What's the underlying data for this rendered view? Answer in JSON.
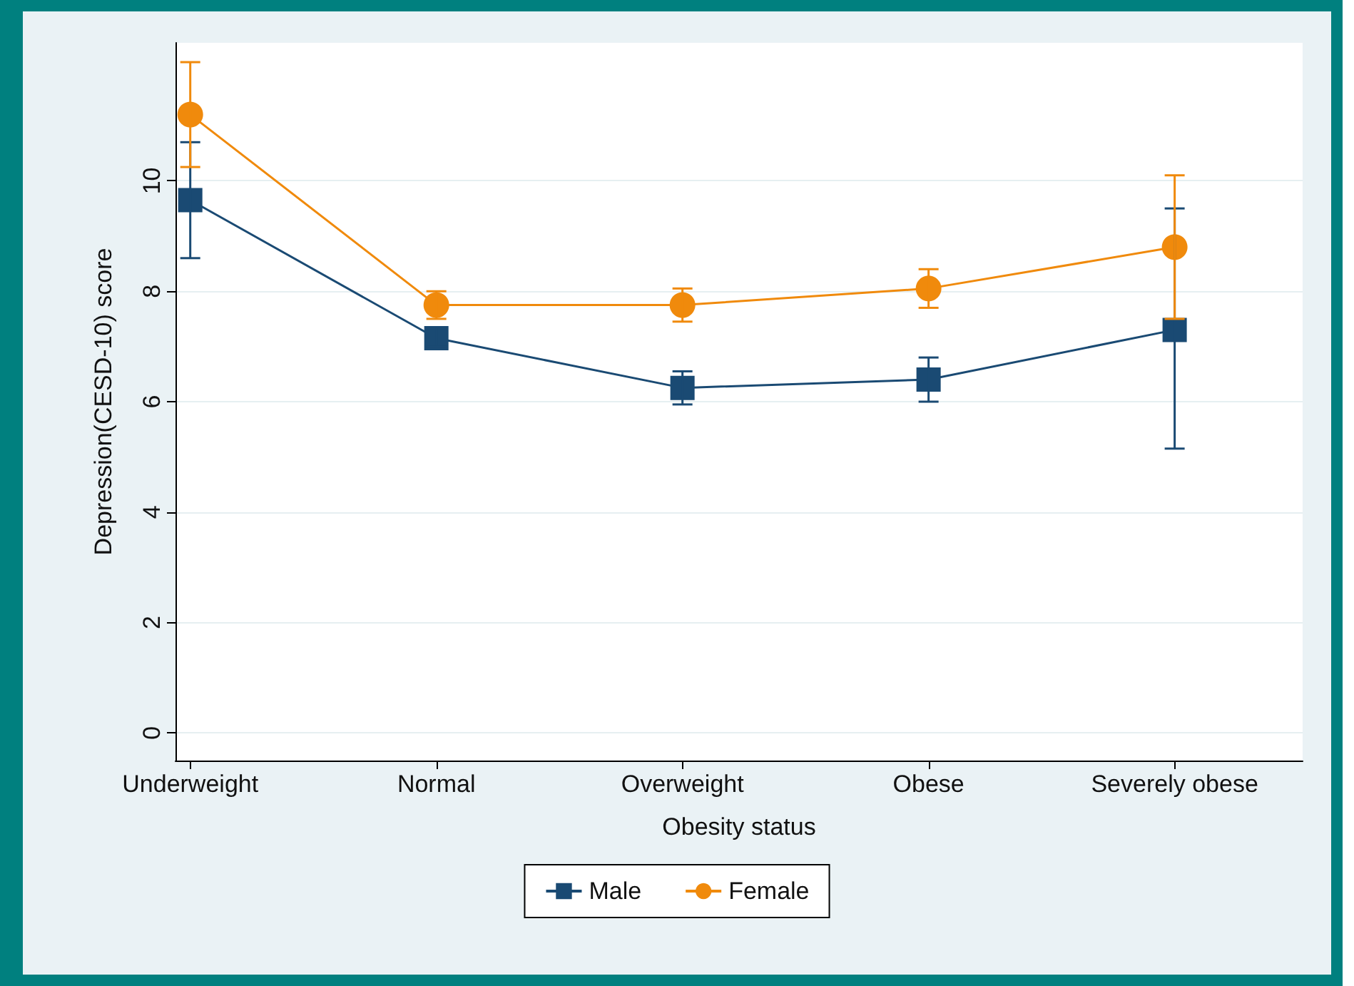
{
  "chart_data": {
    "type": "line",
    "xlabel": "Obesity status",
    "ylabel": "Depression(CESD-10) score",
    "categories": [
      "Underweight",
      "Normal",
      "Overweight",
      "Obese",
      "Severely obese"
    ],
    "series": [
      {
        "name": "Male",
        "color": "#1a4a73",
        "marker": "square",
        "values": [
          9.65,
          7.15,
          6.25,
          6.4,
          7.3
        ],
        "errors": [
          [
            8.6,
            10.7
          ],
          [
            7.0,
            7.35
          ],
          [
            5.95,
            6.55
          ],
          [
            6.0,
            6.8
          ],
          [
            5.15,
            9.5
          ]
        ]
      },
      {
        "name": "Female",
        "color": "#f08a0c",
        "marker": "circle",
        "values": [
          11.2,
          7.75,
          7.75,
          8.05,
          8.8
        ],
        "errors": [
          [
            10.25,
            12.15
          ],
          [
            7.5,
            8.0
          ],
          [
            7.45,
            8.05
          ],
          [
            7.7,
            8.4
          ],
          [
            7.5,
            10.1
          ]
        ]
      }
    ],
    "ylim": [
      -0.5,
      12.5
    ],
    "yticks": [
      0,
      2,
      4,
      6,
      8,
      10
    ],
    "grid": "y",
    "legend": "bottom"
  }
}
